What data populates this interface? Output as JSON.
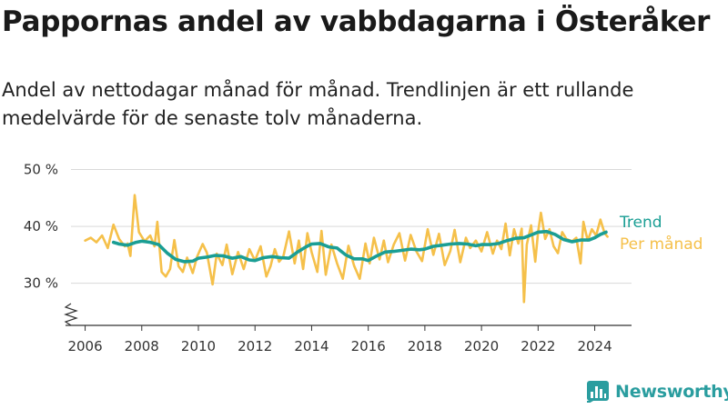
{
  "title": "Pappornas andel av vabbdagarna i Österåker",
  "subtitle": "Andel av nettodagar månad för månad. Trendlinjen är ett rullande medelvärde för de senaste tolv månaderna.",
  "brand": {
    "name": "Newsworthy",
    "icon": "newsworthy-logo-icon",
    "color": "#2a9d9f"
  },
  "chart_data": {
    "type": "line",
    "xlabel": "",
    "ylabel": "",
    "xlim": [
      2005.5,
      2025.3
    ],
    "ylim": [
      22.6,
      52
    ],
    "y_ticks": [
      30,
      40,
      50
    ],
    "y_tick_labels": [
      "30 %",
      "40 %",
      "50 %"
    ],
    "x_ticks": [
      2006,
      2008,
      2010,
      2012,
      2014,
      2016,
      2018,
      2020,
      2022,
      2024
    ],
    "x_tick_labels": [
      "2006",
      "2008",
      "2010",
      "2012",
      "2014",
      "2016",
      "2018",
      "2020",
      "2022",
      "2024"
    ],
    "grid": true,
    "axis_break": true,
    "legend": "direct labels at line ends",
    "series": [
      {
        "name": "Trend",
        "color": "#1a9e94",
        "x": [
          2007.0,
          2007.2,
          2007.5,
          2007.8,
          2008.0,
          2008.3,
          2008.6,
          2008.9,
          2009.2,
          2009.5,
          2009.8,
          2010.0,
          2010.3,
          2010.6,
          2010.9,
          2011.2,
          2011.5,
          2011.8,
          2012.0,
          2012.3,
          2012.6,
          2012.9,
          2013.2,
          2013.5,
          2013.8,
          2014.0,
          2014.3,
          2014.6,
          2014.9,
          2015.2,
          2015.5,
          2015.8,
          2016.0,
          2016.3,
          2016.6,
          2016.9,
          2017.2,
          2017.5,
          2017.8,
          2018.0,
          2018.3,
          2018.6,
          2018.9,
          2019.2,
          2019.5,
          2019.8,
          2020.0,
          2020.3,
          2020.6,
          2020.9,
          2021.2,
          2021.5,
          2021.8,
          2022.0,
          2022.3,
          2022.6,
          2022.9,
          2023.2,
          2023.5,
          2023.8,
          2024.0,
          2024.2,
          2024.4
        ],
        "values": [
          37.2,
          36.9,
          36.7,
          37.2,
          37.4,
          37.2,
          36.8,
          35.3,
          34.2,
          33.8,
          33.9,
          34.4,
          34.6,
          34.9,
          34.8,
          34.4,
          34.7,
          34.1,
          34.0,
          34.5,
          34.7,
          34.5,
          34.4,
          35.5,
          36.4,
          36.9,
          37.0,
          36.4,
          36.2,
          35.0,
          34.3,
          34.3,
          34.0,
          34.8,
          35.5,
          35.6,
          35.8,
          36.0,
          35.9,
          36.0,
          36.5,
          36.7,
          36.9,
          37.0,
          36.9,
          36.6,
          36.8,
          36.8,
          37.0,
          37.5,
          37.9,
          38.0,
          38.6,
          39.0,
          39.1,
          38.6,
          37.7,
          37.3,
          37.6,
          37.6,
          38.0,
          38.6,
          39.0
        ]
      },
      {
        "name": "Per månad",
        "color": "#f5c04a",
        "x": [
          2006.0,
          2006.2,
          2006.4,
          2006.6,
          2006.8,
          2007.0,
          2007.2,
          2007.4,
          2007.5,
          2007.6,
          2007.75,
          2007.9,
          2008.1,
          2008.3,
          2008.45,
          2008.55,
          2008.7,
          2008.85,
          2009.0,
          2009.15,
          2009.3,
          2009.45,
          2009.6,
          2009.8,
          2009.95,
          2010.15,
          2010.3,
          2010.5,
          2010.65,
          2010.85,
          2011.0,
          2011.2,
          2011.4,
          2011.6,
          2011.8,
          2012.0,
          2012.2,
          2012.4,
          2012.55,
          2012.7,
          2012.85,
          2013.0,
          2013.2,
          2013.4,
          2013.55,
          2013.7,
          2013.85,
          2014.0,
          2014.2,
          2014.35,
          2014.5,
          2014.7,
          2014.9,
          2015.1,
          2015.3,
          2015.5,
          2015.7,
          2015.9,
          2016.05,
          2016.2,
          2016.4,
          2016.55,
          2016.7,
          2016.9,
          2017.1,
          2017.3,
          2017.5,
          2017.7,
          2017.9,
          2018.1,
          2018.3,
          2018.5,
          2018.7,
          2018.9,
          2019.05,
          2019.25,
          2019.45,
          2019.6,
          2019.8,
          2020.0,
          2020.2,
          2020.4,
          2020.55,
          2020.7,
          2020.85,
          2021.0,
          2021.15,
          2021.3,
          2021.42,
          2021.5,
          2021.6,
          2021.75,
          2021.9,
          2022.0,
          2022.1,
          2022.25,
          2022.4,
          2022.55,
          2022.7,
          2022.85,
          2023.0,
          2023.2,
          2023.35,
          2023.5,
          2023.6,
          2023.75,
          2023.9,
          2024.05,
          2024.2,
          2024.35,
          2024.45
        ],
        "values": [
          37.5,
          38.0,
          37.2,
          38.4,
          36.2,
          40.3,
          37.8,
          36.5,
          37.0,
          34.8,
          45.5,
          39.0,
          37.4,
          38.4,
          36.5,
          40.8,
          32.0,
          31.2,
          32.5,
          37.6,
          33.0,
          32.0,
          34.5,
          31.8,
          34.6,
          36.9,
          35.4,
          29.8,
          35.2,
          33.2,
          36.8,
          31.6,
          35.5,
          32.5,
          36.0,
          34.0,
          36.5,
          31.2,
          33.0,
          36.0,
          33.8,
          34.7,
          39.1,
          33.5,
          37.5,
          32.5,
          38.8,
          35.5,
          32.0,
          39.2,
          31.5,
          36.8,
          33.5,
          30.8,
          36.6,
          33.1,
          30.8,
          37.0,
          33.5,
          38.0,
          34.2,
          37.5,
          33.7,
          36.8,
          38.8,
          34.0,
          38.5,
          35.6,
          33.9,
          39.5,
          35.0,
          38.7,
          33.2,
          35.7,
          39.4,
          33.7,
          38.0,
          36.2,
          37.5,
          35.6,
          39.0,
          35.2,
          37.5,
          36.0,
          40.5,
          34.9,
          39.5,
          37.0,
          39.6,
          26.7,
          36.8,
          40.2,
          33.8,
          39.0,
          42.4,
          37.8,
          39.5,
          36.5,
          35.3,
          39.0,
          37.8,
          37.4,
          38.0,
          33.5,
          40.8,
          37.5,
          39.5,
          38.4,
          41.2,
          38.8,
          38.2
        ]
      }
    ]
  }
}
